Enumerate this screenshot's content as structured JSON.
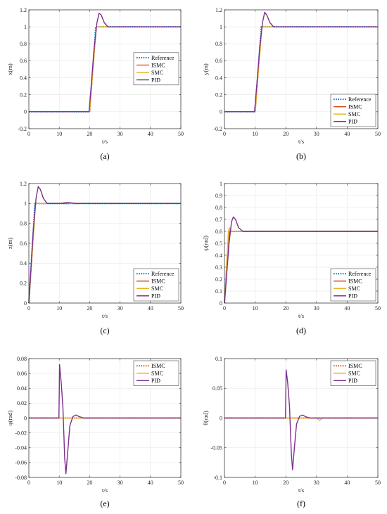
{
  "colors": {
    "Reference": "#0072BD",
    "ISMC": "#D95319",
    "SMC": "#EDB120",
    "PID": "#7E2F8E",
    "grid": "#e6e6e6",
    "axis": "#262626"
  },
  "chart_data": [
    {
      "type": "line",
      "caption": "(a)",
      "xlabel": "t/s",
      "ylabel": "x(m)",
      "xlim": [
        0,
        50
      ],
      "ylim": [
        -0.2,
        1.2
      ],
      "xticks": [
        "0",
        "10",
        "20",
        "30",
        "40",
        "50"
      ],
      "yticks": [
        "-0.2",
        "0",
        "0.2",
        "0.4",
        "0.6",
        "0.8",
        "1",
        "1.2"
      ],
      "legend_position": "right-middle",
      "series": [
        {
          "name": "Reference",
          "style": "dotted",
          "points": [
            [
              0,
              0
            ],
            [
              20,
              0
            ],
            [
              22,
              1
            ],
            [
              50,
              1
            ]
          ]
        },
        {
          "name": "ISMC",
          "style": "solid",
          "points": [
            [
              0,
              0
            ],
            [
              20,
              0
            ],
            [
              22.2,
              1
            ],
            [
              50,
              1
            ]
          ]
        },
        {
          "name": "SMC",
          "style": "solid",
          "points": [
            [
              0,
              0
            ],
            [
              20,
              0
            ],
            [
              22.2,
              1
            ],
            [
              50,
              1
            ]
          ]
        },
        {
          "name": "PID",
          "style": "solid",
          "points": [
            [
              0,
              0
            ],
            [
              19.8,
              0
            ],
            [
              20.5,
              0.3
            ],
            [
              21.5,
              0.75
            ],
            [
              22.4,
              1.05
            ],
            [
              23.1,
              1.16
            ],
            [
              23.8,
              1.14
            ],
            [
              24.8,
              1.05
            ],
            [
              26,
              1.0
            ],
            [
              50,
              1
            ]
          ]
        }
      ]
    },
    {
      "type": "line",
      "caption": "(b)",
      "xlabel": "t/s",
      "ylabel": "y(m)",
      "xlim": [
        0,
        50
      ],
      "ylim": [
        -0.2,
        1.2
      ],
      "xticks": [
        "0",
        "10",
        "20",
        "30",
        "40",
        "50"
      ],
      "yticks": [
        "-0.2",
        "0",
        "0.2",
        "0.4",
        "0.6",
        "0.8",
        "1",
        "1.2"
      ],
      "legend_position": "bottom-right",
      "series": [
        {
          "name": "Reference",
          "style": "dotted",
          "points": [
            [
              0,
              0
            ],
            [
              10,
              0
            ],
            [
              12,
              1
            ],
            [
              50,
              1
            ]
          ]
        },
        {
          "name": "ISMC",
          "style": "solid",
          "points": [
            [
              0,
              0
            ],
            [
              10,
              0
            ],
            [
              12.2,
              1
            ],
            [
              50,
              1
            ]
          ]
        },
        {
          "name": "SMC",
          "style": "solid",
          "points": [
            [
              0,
              0
            ],
            [
              10,
              0
            ],
            [
              12.2,
              1
            ],
            [
              50,
              1
            ]
          ]
        },
        {
          "name": "PID",
          "style": "solid",
          "points": [
            [
              0,
              0
            ],
            [
              9.8,
              0
            ],
            [
              10.5,
              0.3
            ],
            [
              11.5,
              0.75
            ],
            [
              12.4,
              1.05
            ],
            [
              13.1,
              1.17
            ],
            [
              13.8,
              1.14
            ],
            [
              14.8,
              1.05
            ],
            [
              16,
              1.0
            ],
            [
              50,
              1
            ]
          ]
        }
      ]
    },
    {
      "type": "line",
      "caption": "(c)",
      "xlabel": "t/s",
      "ylabel": "z(m)",
      "xlim": [
        0,
        50
      ],
      "ylim": [
        0,
        1.2
      ],
      "xticks": [
        "0",
        "10",
        "20",
        "30",
        "40",
        "50"
      ],
      "yticks": [
        "0",
        "0.2",
        "0.4",
        "0.6",
        "0.8",
        "1",
        "1.2"
      ],
      "legend_position": "bottom-right",
      "series": [
        {
          "name": "Reference",
          "style": "dotted",
          "points": [
            [
              0,
              0
            ],
            [
              2,
              1
            ],
            [
              50,
              1
            ]
          ]
        },
        {
          "name": "ISMC",
          "style": "solid",
          "points": [
            [
              0,
              0
            ],
            [
              2.2,
              1
            ],
            [
              50,
              1
            ]
          ]
        },
        {
          "name": "SMC",
          "style": "solid",
          "points": [
            [
              0,
              0
            ],
            [
              2.2,
              1
            ],
            [
              10,
              1
            ],
            [
              12,
              1.01
            ],
            [
              14,
              1.0
            ],
            [
              50,
              1
            ]
          ]
        },
        {
          "name": "PID",
          "style": "solid",
          "points": [
            [
              0,
              0
            ],
            [
              0.6,
              0.3
            ],
            [
              1.5,
              0.75
            ],
            [
              2.4,
              1.06
            ],
            [
              3.1,
              1.17
            ],
            [
              3.8,
              1.14
            ],
            [
              4.8,
              1.05
            ],
            [
              6,
              1.0
            ],
            [
              11,
              1.0
            ],
            [
              13,
              1.01
            ],
            [
              15,
              1.0
            ],
            [
              50,
              1
            ]
          ]
        }
      ]
    },
    {
      "type": "line",
      "caption": "(d)",
      "xlabel": "t/s",
      "ylabel": "ψ(rad)",
      "xlim": [
        0,
        50
      ],
      "ylim": [
        0,
        1
      ],
      "xticks": [
        "0",
        "10",
        "20",
        "30",
        "40",
        "50"
      ],
      "yticks": [
        "0",
        "0.1",
        "0.2",
        "0.3",
        "0.4",
        "0.5",
        "0.6",
        "0.7",
        "0.8",
        "0.9",
        "1"
      ],
      "legend_position": "bottom-right",
      "series": [
        {
          "name": "Reference",
          "style": "dotted",
          "points": [
            [
              0,
              0
            ],
            [
              1.5,
              0.6
            ],
            [
              50,
              0.6
            ]
          ]
        },
        {
          "name": "ISMC",
          "style": "solid",
          "points": [
            [
              0,
              0
            ],
            [
              1.7,
              0.6
            ],
            [
              50,
              0.6
            ]
          ]
        },
        {
          "name": "SMC",
          "style": "solid",
          "points": [
            [
              0,
              0
            ],
            [
              1.3,
              0.6
            ],
            [
              1.6,
              0.63
            ],
            [
              2.0,
              0.6
            ],
            [
              50,
              0.6
            ]
          ]
        },
        {
          "name": "PID",
          "style": "solid",
          "points": [
            [
              0,
              0
            ],
            [
              0.6,
              0.2
            ],
            [
              1.5,
              0.5
            ],
            [
              2.3,
              0.68
            ],
            [
              2.9,
              0.72
            ],
            [
              3.6,
              0.7
            ],
            [
              4.6,
              0.63
            ],
            [
              6,
              0.6
            ],
            [
              50,
              0.6
            ]
          ]
        }
      ]
    },
    {
      "type": "line",
      "caption": "(e)",
      "xlabel": "t/s",
      "ylabel": "φ(rad)",
      "xlim": [
        0,
        50
      ],
      "ylim": [
        -0.08,
        0.08
      ],
      "xticks": [
        "0",
        "10",
        "20",
        "30",
        "40",
        "50"
      ],
      "yticks": [
        "-0.08",
        "-0.06",
        "-0.04",
        "-0.02",
        "0",
        "0.02",
        "0.04",
        "0.06",
        "0.08"
      ],
      "legend_position": "top-right",
      "series": [
        {
          "name": "ISMC",
          "style": "dotted",
          "points": [
            [
              0,
              0
            ],
            [
              50,
              0
            ]
          ]
        },
        {
          "name": "SMC",
          "style": "solid",
          "points": [
            [
              0,
              0
            ],
            [
              50,
              0
            ]
          ]
        },
        {
          "name": "PID",
          "style": "solid",
          "points": [
            [
              0,
              0
            ],
            [
              9.9,
              0
            ],
            [
              10.1,
              0.072
            ],
            [
              10.6,
              0.05
            ],
            [
              11.2,
              0.015
            ],
            [
              11.8,
              -0.055
            ],
            [
              12.2,
              -0.075
            ],
            [
              12.8,
              -0.045
            ],
            [
              13.5,
              -0.01
            ],
            [
              14.5,
              0.002
            ],
            [
              15.5,
              0.004
            ],
            [
              16.5,
              0.002
            ],
            [
              18,
              0
            ],
            [
              50,
              0
            ]
          ]
        }
      ]
    },
    {
      "type": "line",
      "caption": "(f)",
      "xlabel": "t/s",
      "ylabel": "θ(rad)",
      "xlim": [
        0,
        50
      ],
      "ylim": [
        -0.1,
        0.1
      ],
      "xticks": [
        "0",
        "10",
        "20",
        "30",
        "40",
        "50"
      ],
      "yticks": [
        "-0.1",
        "-0.05",
        "0",
        "0.05",
        "0.1"
      ],
      "legend_position": "top-right",
      "series": [
        {
          "name": "ISMC",
          "style": "dotted",
          "points": [
            [
              0,
              0
            ],
            [
              50,
              0
            ]
          ]
        },
        {
          "name": "SMC",
          "style": "solid",
          "points": [
            [
              0,
              0
            ],
            [
              30,
              0
            ],
            [
              31,
              -0.004
            ],
            [
              32,
              0
            ],
            [
              50,
              0
            ]
          ]
        },
        {
          "name": "PID",
          "style": "solid",
          "points": [
            [
              0,
              0
            ],
            [
              19.9,
              0
            ],
            [
              20.1,
              0.081
            ],
            [
              20.6,
              0.06
            ],
            [
              21.2,
              0.02
            ],
            [
              21.8,
              -0.06
            ],
            [
              22.2,
              -0.087
            ],
            [
              22.8,
              -0.05
            ],
            [
              23.5,
              -0.01
            ],
            [
              24.5,
              0.003
            ],
            [
              25.5,
              0.005
            ],
            [
              26.5,
              0.002
            ],
            [
              28,
              0
            ],
            [
              50,
              0
            ]
          ]
        }
      ]
    }
  ]
}
